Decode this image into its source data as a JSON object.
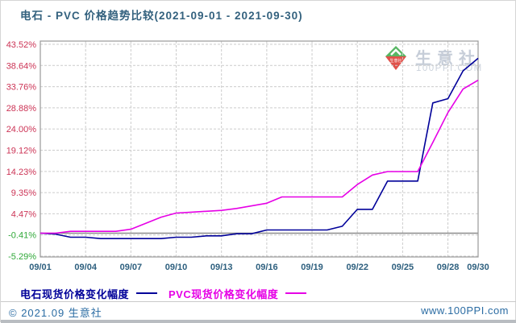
{
  "title": "电石 - PVC 价格趋势比较(2021-09-01 - 2021-09-30)",
  "watermark": {
    "brand": "生意社",
    "site": "100PPI.COM"
  },
  "legend": [
    {
      "label": "电石现货价格变化幅度",
      "color": "#000099"
    },
    {
      "label": "PVC现货价格变化幅度",
      "color": "#e600e6"
    }
  ],
  "footer": {
    "left": "© 2021.09 生意社",
    "right": "www.100PPI.com"
  },
  "colors": {
    "title_text": "#33617e",
    "x_tick_text": "#2d5f7e",
    "y_tick_positive": "#cc3355",
    "y_tick_negative": "#2fa838",
    "gridline": "#cccccc",
    "plot_border": "#9a9a9a",
    "zero_line": "#8c8c8c",
    "series_carbide": "#000099",
    "series_pvc": "#e600e6",
    "watermark_text": "#c6cdd8",
    "footer_text": "#2b6ca3"
  },
  "chart_data": {
    "type": "line",
    "title": "电石 - PVC 价格趋势比较(2021-09-01 - 2021-09-30)",
    "xlabel": "",
    "ylabel": "价格变化幅度(%)",
    "ylim": [
      -5.29,
      43.52
    ],
    "grid": true,
    "legend_position": "bottom-left",
    "zero_line": true,
    "x_dates": [
      "09/01",
      "09/02",
      "09/03",
      "09/04",
      "09/05",
      "09/06",
      "09/07",
      "09/08",
      "09/09",
      "09/10",
      "09/11",
      "09/12",
      "09/13",
      "09/14",
      "09/15",
      "09/16",
      "09/17",
      "09/18",
      "09/19",
      "09/20",
      "09/21",
      "09/22",
      "09/23",
      "09/24",
      "09/25",
      "09/26",
      "09/27",
      "09/28",
      "09/29",
      "09/30"
    ],
    "x_ticks": [
      {
        "day": 1,
        "label": "09/01"
      },
      {
        "day": 4,
        "label": "09/04"
      },
      {
        "day": 7,
        "label": "09/07"
      },
      {
        "day": 10,
        "label": "09/10"
      },
      {
        "day": 13,
        "label": "09/13"
      },
      {
        "day": 16,
        "label": "09/16"
      },
      {
        "day": 19,
        "label": "09/19"
      },
      {
        "day": 22,
        "label": "09/22"
      },
      {
        "day": 25,
        "label": "09/25"
      },
      {
        "day": 28,
        "label": "09/28"
      },
      {
        "day": 30,
        "label": "09/30"
      }
    ],
    "y_ticks": [
      {
        "value": 43.52,
        "label": "43.52%"
      },
      {
        "value": 38.64,
        "label": "38.64%"
      },
      {
        "value": 33.76,
        "label": "33.76%"
      },
      {
        "value": 28.88,
        "label": "28.88%"
      },
      {
        "value": 24.0,
        "label": "24.00%"
      },
      {
        "value": 19.12,
        "label": "19.12%"
      },
      {
        "value": 14.23,
        "label": "14.23%"
      },
      {
        "value": 9.35,
        "label": "9.35%"
      },
      {
        "value": 4.47,
        "label": "4.47%"
      },
      {
        "value": -0.41,
        "label": "-0.41%"
      },
      {
        "value": -5.29,
        "label": "-5.29%"
      }
    ],
    "series": [
      {
        "name": "电石现货价格变化幅度",
        "color": "#000099",
        "values": [
          0.0,
          -0.21,
          -0.93,
          -0.93,
          -1.24,
          -1.24,
          -1.24,
          -1.24,
          -1.24,
          -0.93,
          -0.93,
          -0.62,
          -0.62,
          -0.13,
          -0.13,
          0.74,
          0.74,
          0.74,
          0.74,
          0.74,
          1.6,
          5.5,
          5.5,
          12.0,
          12.0,
          12.0,
          30.0,
          31.0,
          37.4,
          40.3
        ]
      },
      {
        "name": "PVC现货价格变化幅度",
        "color": "#e600e6",
        "values": [
          0.0,
          0.0,
          0.43,
          0.43,
          0.43,
          0.43,
          0.9,
          2.3,
          3.7,
          4.64,
          4.85,
          5.05,
          5.25,
          5.7,
          6.3,
          6.9,
          8.35,
          8.35,
          8.35,
          8.35,
          8.35,
          11.2,
          13.4,
          14.2,
          14.2,
          14.2,
          20.9,
          27.8,
          33.2,
          35.25
        ]
      }
    ]
  }
}
